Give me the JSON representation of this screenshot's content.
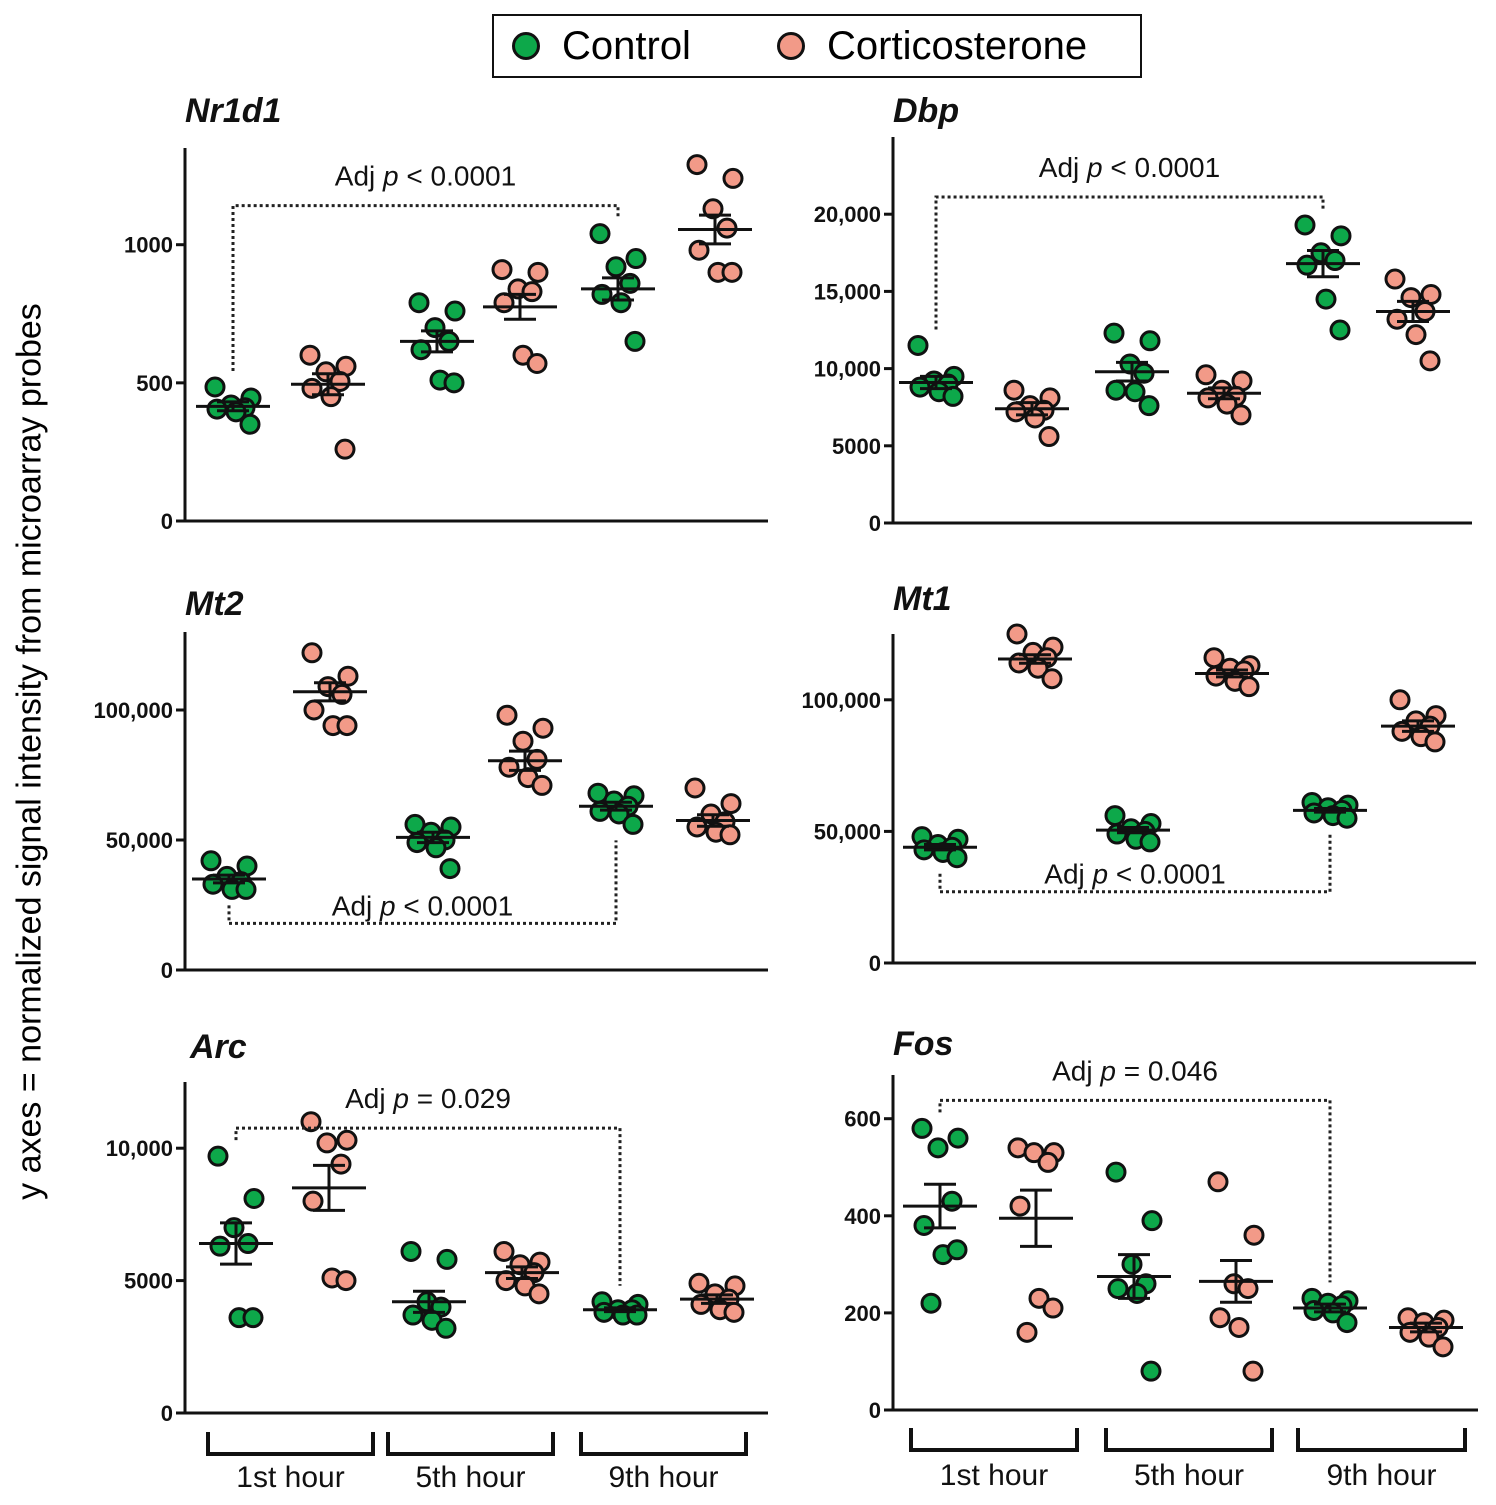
{
  "legend": {
    "control_label": "Control",
    "cort_label": "Corticosterone"
  },
  "colors": {
    "control": "#0da84a",
    "cort": "#f29a88",
    "ink": "#111111"
  },
  "y_axis_label": "y axes = normalized signal intensity from microarray probes",
  "timepoints": [
    "1st hour",
    "5th hour",
    "9th hour"
  ],
  "chart_data": [
    {
      "type": "scatter",
      "title": "Nr1d1",
      "ylim": [
        0,
        1350
      ],
      "ticks": [
        {
          "v": 0,
          "label": "0"
        },
        {
          "v": 500,
          "label": "500"
        },
        {
          "v": 1000,
          "label": "1000"
        }
      ],
      "annotation": {
        "prefix": "Adj ",
        "p": "p",
        "suffix": " < 0.0001",
        "from_group": 0,
        "to_group": 4,
        "position": "above"
      },
      "groups": [
        {
          "series": "Control",
          "time": "1st hour",
          "points": [
            485,
            445,
            420,
            410,
            405,
            395,
            350
          ],
          "mean": 415,
          "sem": 16
        },
        {
          "series": "Corticosterone",
          "time": "1st hour",
          "points": [
            600,
            560,
            540,
            505,
            480,
            450,
            260
          ],
          "mean": 495,
          "sem": 38
        },
        {
          "series": "Control",
          "time": "5th hour",
          "points": [
            790,
            760,
            700,
            650,
            620,
            510,
            500
          ],
          "mean": 650,
          "sem": 38
        },
        {
          "series": "Corticosterone",
          "time": "5th hour",
          "points": [
            910,
            900,
            840,
            830,
            790,
            600,
            570
          ],
          "mean": 775,
          "sem": 45
        },
        {
          "series": "Control",
          "time": "9th hour",
          "points": [
            1040,
            950,
            920,
            860,
            820,
            790,
            650
          ],
          "mean": 840,
          "sem": 40
        },
        {
          "series": "Corticosterone",
          "time": "9th hour",
          "points": [
            1290,
            1240,
            1130,
            1060,
            980,
            900,
            900
          ],
          "mean": 1055,
          "sem": 52
        }
      ]
    },
    {
      "type": "scatter",
      "title": "Dbp",
      "ylim": [
        0,
        25000
      ],
      "ticks": [
        {
          "v": 0,
          "label": "0"
        },
        {
          "v": 5000,
          "label": "5000"
        },
        {
          "v": 10000,
          "label": "10,000"
        },
        {
          "v": 15000,
          "label": "15,000"
        },
        {
          "v": 20000,
          "label": "20,000"
        }
      ],
      "annotation": {
        "prefix": "Adj ",
        "p": "p",
        "suffix": " < 0.0001",
        "from_group": 0,
        "to_group": 4,
        "position": "above"
      },
      "groups": [
        {
          "series": "Control",
          "time": "1st hour",
          "points": [
            11500,
            9500,
            9200,
            9000,
            8800,
            8500,
            8200
          ],
          "mean": 9100,
          "sem": 400
        },
        {
          "series": "Corticosterone",
          "time": "1st hour",
          "points": [
            8600,
            8100,
            7600,
            7300,
            7200,
            6800,
            5600
          ],
          "mean": 7400,
          "sem": 400
        },
        {
          "series": "Control",
          "time": "5th hour",
          "points": [
            12300,
            11800,
            10300,
            9700,
            8600,
            8500,
            7600
          ],
          "mean": 9800,
          "sem": 600
        },
        {
          "series": "Corticosterone",
          "time": "5th hour",
          "points": [
            9600,
            9200,
            8600,
            8200,
            8100,
            7700,
            7000
          ],
          "mean": 8400,
          "sem": 350
        },
        {
          "series": "Control",
          "time": "9th hour",
          "points": [
            19300,
            18600,
            17500,
            17000,
            16700,
            14500,
            12500
          ],
          "mean": 16800,
          "sem": 850
        },
        {
          "series": "Corticosterone",
          "time": "9th hour",
          "points": [
            15800,
            14800,
            14600,
            13700,
            13200,
            12200,
            10500
          ],
          "mean": 13700,
          "sem": 650
        }
      ]
    },
    {
      "type": "scatter",
      "title": "Mt2",
      "ylim": [
        0,
        130000
      ],
      "ticks": [
        {
          "v": 0,
          "label": "0"
        },
        {
          "v": 50000,
          "label": "50,000"
        },
        {
          "v": 100000,
          "label": "100,000"
        }
      ],
      "annotation": {
        "prefix": "Adj ",
        "p": "p",
        "suffix": " < 0.0001",
        "from_group": 0,
        "to_group": 4,
        "position": "below"
      },
      "groups": [
        {
          "series": "Control",
          "time": "1st hour",
          "points": [
            42000,
            40000,
            36000,
            34000,
            33000,
            31000,
            31000
          ],
          "mean": 35000,
          "sem": 1500
        },
        {
          "series": "Corticosterone",
          "time": "1st hour",
          "points": [
            122000,
            113000,
            109000,
            106000,
            100000,
            94000,
            94000
          ],
          "mean": 107000,
          "sem": 3500
        },
        {
          "series": "Control",
          "time": "5th hour",
          "points": [
            56000,
            55000,
            53000,
            50000,
            49000,
            47000,
            39000
          ],
          "mean": 51000,
          "sem": 2000
        },
        {
          "series": "Corticosterone",
          "time": "5th hour",
          "points": [
            98000,
            93000,
            88000,
            81000,
            78000,
            74000,
            71000
          ],
          "mean": 80500,
          "sem": 3700
        },
        {
          "series": "Control",
          "time": "9th hour",
          "points": [
            68000,
            67000,
            65000,
            63000,
            61000,
            60000,
            56000
          ],
          "mean": 63000,
          "sem": 1500
        },
        {
          "series": "Corticosterone",
          "time": "9th hour",
          "points": [
            70000,
            64000,
            60000,
            57000,
            55000,
            53000,
            52000
          ],
          "mean": 57500,
          "sem": 2200
        }
      ]
    },
    {
      "type": "scatter",
      "title": "Mt1",
      "ylim": [
        0,
        125000
      ],
      "ticks": [
        {
          "v": 0,
          "label": "0"
        },
        {
          "v": 50000,
          "label": "50,000"
        },
        {
          "v": 100000,
          "label": "100,000"
        }
      ],
      "annotation": {
        "prefix": "Adj ",
        "p": "p",
        "suffix": " < 0.0001",
        "from_group": 0,
        "to_group": 4,
        "position": "below"
      },
      "groups": [
        {
          "series": "Control",
          "time": "1st hour",
          "points": [
            48000,
            47000,
            45000,
            44000,
            43000,
            42000,
            40000
          ],
          "mean": 44000,
          "sem": 1000
        },
        {
          "series": "Corticosterone",
          "time": "1st hour",
          "points": [
            125000,
            120000,
            118000,
            116000,
            114000,
            112000,
            108000
          ],
          "mean": 115500,
          "sem": 1600
        },
        {
          "series": "Control",
          "time": "5th hour",
          "points": [
            56000,
            53000,
            51000,
            50000,
            49000,
            47000,
            46000
          ],
          "mean": 50500,
          "sem": 1000
        },
        {
          "series": "Corticosterone",
          "time": "5th hour",
          "points": [
            116000,
            113000,
            112000,
            111000,
            109000,
            107000,
            105000
          ],
          "mean": 110000,
          "sem": 1300
        },
        {
          "series": "Control",
          "time": "9th hour",
          "points": [
            61000,
            60000,
            59000,
            58000,
            57000,
            56000,
            55000
          ],
          "mean": 58000,
          "sem": 700
        },
        {
          "series": "Corticosterone",
          "time": "9th hour",
          "points": [
            100000,
            94000,
            92000,
            90000,
            88000,
            86000,
            84000
          ],
          "mean": 90000,
          "sem": 2000
        }
      ]
    },
    {
      "type": "scatter",
      "title": "Arc",
      "ylim": [
        0,
        12500
      ],
      "ticks": [
        {
          "v": 0,
          "label": "0"
        },
        {
          "v": 5000,
          "label": "5000"
        },
        {
          "v": 10000,
          "label": "10,000"
        }
      ],
      "annotation": {
        "prefix": "Adj ",
        "p": "p",
        "suffix": " = 0.029",
        "from_group": 0,
        "to_group": 4,
        "position": "above"
      },
      "groups": [
        {
          "series": "Control",
          "time": "1st hour",
          "points": [
            9700,
            8100,
            7000,
            6400,
            6300,
            3600,
            3600
          ],
          "mean": 6400,
          "sem": 780
        },
        {
          "series": "Corticosterone",
          "time": "1st hour",
          "points": [
            11000,
            10300,
            10200,
            9400,
            8000,
            5100,
            5000
          ],
          "mean": 8500,
          "sem": 850
        },
        {
          "series": "Control",
          "time": "5th hour",
          "points": [
            6100,
            5800,
            4200,
            4000,
            3700,
            3500,
            3200
          ],
          "mean": 4200,
          "sem": 400
        },
        {
          "series": "Corticosterone",
          "time": "5th hour",
          "points": [
            6100,
            5700,
            5600,
            5300,
            5000,
            4800,
            4500
          ],
          "mean": 5300,
          "sem": 220
        },
        {
          "series": "Control",
          "time": "9th hour",
          "points": [
            4200,
            4100,
            3900,
            3900,
            3800,
            3700,
            3700
          ],
          "mean": 3900,
          "sem": 70
        },
        {
          "series": "Corticosterone",
          "time": "9th hour",
          "points": [
            4900,
            4800,
            4500,
            4300,
            4100,
            3900,
            3800
          ],
          "mean": 4300,
          "sem": 160
        }
      ]
    },
    {
      "type": "scatter",
      "title": "Fos",
      "ylim": [
        0,
        690
      ],
      "ticks": [
        {
          "v": 0,
          "label": "0"
        },
        {
          "v": 200,
          "label": "200"
        },
        {
          "v": 400,
          "label": "400"
        },
        {
          "v": 600,
          "label": "600"
        }
      ],
      "annotation": {
        "prefix": "Adj ",
        "p": "p",
        "suffix": " = 0.046",
        "from_group": 0,
        "to_group": 4,
        "position": "above"
      },
      "groups": [
        {
          "series": "Control",
          "time": "1st hour",
          "points": [
            580,
            560,
            540,
            430,
            380,
            320,
            330,
            220
          ],
          "mean": 420,
          "sem": 45
        },
        {
          "series": "Corticosterone",
          "time": "1st hour",
          "points": [
            540,
            530,
            530,
            510,
            420,
            230,
            210,
            160
          ],
          "mean": 395,
          "sem": 58
        },
        {
          "series": "Control",
          "time": "5th hour",
          "points": [
            490,
            390,
            300,
            260,
            250,
            240,
            80
          ],
          "mean": 275,
          "sem": 45
        },
        {
          "series": "Corticosterone",
          "time": "5th hour",
          "points": [
            470,
            360,
            260,
            250,
            190,
            170,
            80
          ],
          "mean": 265,
          "sem": 43
        },
        {
          "series": "Control",
          "time": "9th hour",
          "points": [
            230,
            225,
            220,
            215,
            205,
            200,
            180
          ],
          "mean": 210,
          "sem": 8
        },
        {
          "series": "Corticosterone",
          "time": "9th hour",
          "points": [
            190,
            185,
            180,
            170,
            160,
            150,
            130
          ],
          "mean": 170,
          "sem": 9
        }
      ]
    }
  ]
}
